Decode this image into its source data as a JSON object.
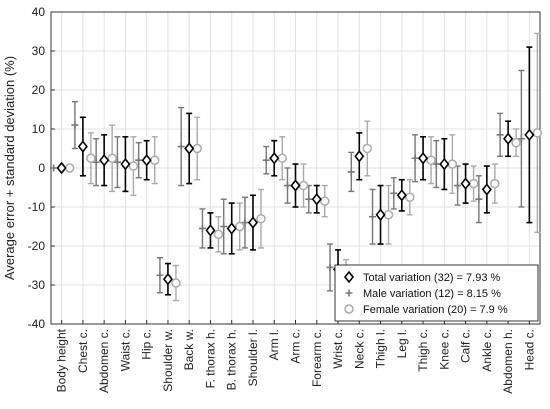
{
  "chart_data": {
    "type": "errorbar",
    "title": "",
    "xlabel": "",
    "ylabel": "Average error + standard deviation (%)",
    "ylim": [
      -40,
      40
    ],
    "yticks": [
      -40,
      -30,
      -20,
      -10,
      0,
      10,
      20,
      30,
      40
    ],
    "grid": true,
    "legend_position": "bottom-right",
    "categories": [
      "Body height",
      "Chest c.",
      "Abdomen c.",
      "Waist c.",
      "Hip c.",
      "Shoulder w.",
      "Back w.",
      "F. thorax h.",
      "B. thorax h.",
      "Shoulder l.",
      "Arm l.",
      "Arm c.",
      "Forearm c.",
      "Wrist c.",
      "Neck c.",
      "Thigh l.",
      "Leg l.",
      "Thigh c.",
      "Knee c.",
      "Calf c.",
      "Ankle c.",
      "Abdomen h.",
      "Head c."
    ],
    "series": [
      {
        "name": "Total variation (32) = 7.93 %",
        "color": "#000000",
        "marker": "diamond",
        "values": [
          0,
          5.5,
          2,
          1,
          2,
          -28.5,
          5,
          -16,
          -15.5,
          -14,
          2.5,
          -4.5,
          -8,
          -26,
          3,
          -12,
          -7,
          2.5,
          1,
          -4,
          -5.5,
          7.5,
          8.5
        ],
        "errors": [
          0,
          7.5,
          6.5,
          7,
          5,
          4,
          9,
          4.5,
          6.5,
          7,
          4.5,
          5.5,
          3.5,
          5,
          6,
          7.5,
          4,
          5.5,
          6.5,
          5,
          6,
          4.5,
          22.5
        ]
      },
      {
        "name": "Male variation (12) = 8.15 %",
        "color": "#777777",
        "marker": "plus",
        "values": [
          0,
          11,
          1.5,
          1.5,
          2,
          -27.5,
          5.5,
          -15.5,
          -15,
          -14,
          2,
          -4.5,
          -8,
          -25.5,
          -1,
          -12.5,
          -6.5,
          2.5,
          1,
          -4.5,
          -8,
          8.5,
          7.5
        ],
        "errors": [
          0,
          6,
          6,
          6.5,
          4.5,
          4.5,
          10,
          5,
          7,
          6.5,
          3.5,
          4.5,
          3.5,
          6,
          5,
          7,
          4,
          6,
          6,
          5,
          6,
          5.5,
          17.5
        ]
      },
      {
        "name": "Female variation (20) = 7.9 %",
        "color": "#aaaaaa",
        "marker": "circle",
        "values": [
          0,
          2.5,
          2.5,
          0.5,
          2,
          -29.5,
          5,
          -17,
          -15,
          -13,
          2.5,
          -4.5,
          -8.5,
          -26.5,
          5,
          -12,
          -7.5,
          2,
          1,
          -4,
          -4,
          6.5,
          9
        ],
        "errors": [
          0,
          6.5,
          8.5,
          7.5,
          6,
          4.5,
          8,
          4.5,
          6,
          7.5,
          5.5,
          5.5,
          4,
          3,
          7,
          7.5,
          4.5,
          6,
          7.5,
          4.5,
          5,
          3.5,
          25.5
        ]
      }
    ]
  }
}
